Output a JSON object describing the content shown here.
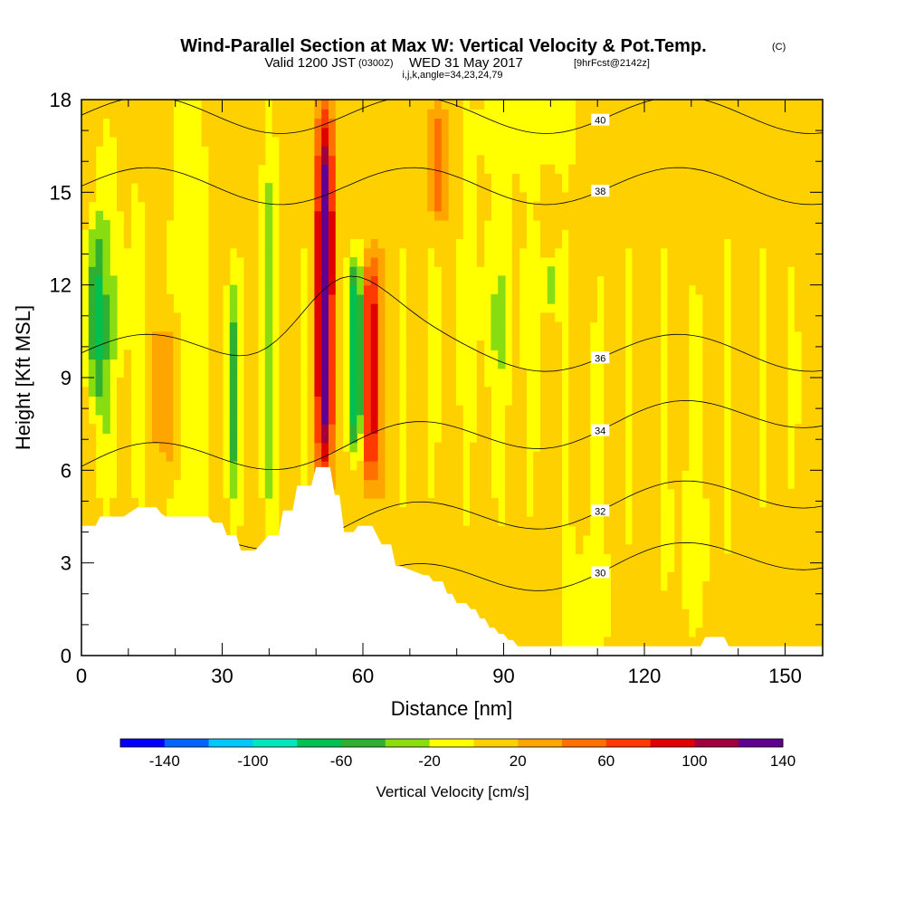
{
  "title": {
    "main": "Wind-Parallel Section at Max W: Vertical Velocity & Pot.Temp.",
    "main_unit": "(C)",
    "valid_prefix": "Valid 1200 JST",
    "valid_utc": "(0300Z)",
    "valid_date": "WED 31 May 2017",
    "forecast": "[9hrFcst@2142z]",
    "indices": "i,j,k,angle=34,23,24,79"
  },
  "colors": {
    "terrain": "#ffffff",
    "frame": "#000000",
    "contour": "#000000",
    "palette": [
      "#0000ff",
      "#0064ff",
      "#00c8ff",
      "#00e6c0",
      "#00c050",
      "#30b030",
      "#88dd10",
      "#ffff00",
      "#ffd000",
      "#ffa500",
      "#ff7000",
      "#ff3a00",
      "#e00000",
      "#a00040",
      "#600090"
    ]
  },
  "chart_data": {
    "type": "heatmap",
    "xlabel": "Distance [nm]",
    "ylabel": "Height [Kft MSL]",
    "xlim": [
      0,
      158
    ],
    "ylim": [
      0,
      18
    ],
    "xticks": [
      0,
      30,
      60,
      90,
      120,
      150
    ],
    "yticks": [
      0,
      3,
      6,
      9,
      12,
      15,
      18
    ],
    "colorbar": {
      "title": "Vertical Velocity [cm/s]",
      "levels": [
        -160,
        -140,
        -120,
        -100,
        -80,
        -60,
        -40,
        -20,
        0,
        20,
        40,
        60,
        80,
        100,
        120,
        140,
        160
      ],
      "tick_labels": [
        -140,
        -100,
        -60,
        -20,
        20,
        60,
        100,
        140
      ]
    },
    "vertical_velocity_features": [
      {
        "x": 52,
        "y_bottom": 6,
        "y_top": 17.5,
        "peak": 150,
        "sign": "updraft"
      },
      {
        "x": 58.5,
        "y_bottom": 6.5,
        "y_top": 13,
        "peak": -110,
        "sign": "downdraft"
      },
      {
        "x": 61.5,
        "y_bottom": 5.5,
        "y_top": 13,
        "peak": 110,
        "sign": "updraft"
      },
      {
        "x": 3,
        "y_bottom": 8,
        "y_top": 14,
        "peak": -55,
        "sign": "downdraft"
      },
      {
        "x": 32,
        "y_bottom": 5,
        "y_top": 12,
        "peak": -50,
        "sign": "downdraft"
      },
      {
        "x": 40,
        "y_bottom": 4,
        "y_top": 17,
        "peak": -30,
        "sign": "downdraft"
      },
      {
        "x": 76,
        "y_bottom": 14,
        "y_top": 18,
        "peak": 50,
        "sign": "updraft"
      },
      {
        "x": 19,
        "y_bottom": 6,
        "y_top": 11,
        "peak": 40,
        "sign": "updraft"
      },
      {
        "x": 100,
        "y_bottom": 11,
        "y_top": 13,
        "peak": -40,
        "sign": "downdraft"
      }
    ],
    "potential_temperature_contours": [
      {
        "value": 30,
        "label": "30"
      },
      {
        "value": 32,
        "label": "32"
      },
      {
        "value": 34,
        "label": "34"
      },
      {
        "value": 36,
        "label": "36"
      },
      {
        "value": 38,
        "label": "38"
      },
      {
        "value": 40,
        "label": "40"
      }
    ],
    "terrain_profile": {
      "x": [
        0,
        3,
        4,
        9,
        12,
        16,
        17,
        18,
        27,
        28,
        30,
        31,
        33,
        34,
        37,
        40,
        42,
        43,
        45,
        46,
        49,
        50,
        53,
        54,
        55,
        56,
        58,
        59,
        62,
        64,
        66,
        67,
        68,
        73,
        74,
        75,
        77,
        78,
        79,
        80,
        82,
        83,
        84,
        85,
        86,
        87,
        88,
        89,
        90,
        91,
        92,
        93,
        94,
        95,
        96,
        97,
        98,
        99,
        100,
        101,
        128,
        132,
        133,
        137,
        138,
        158
      ],
      "y": [
        4.2,
        4.2,
        4.5,
        4.5,
        4.8,
        4.8,
        4.6,
        4.5,
        4.5,
        4.3,
        4.3,
        3.9,
        3.9,
        3.4,
        3.4,
        3.9,
        3.9,
        4.7,
        4.7,
        5.5,
        5.5,
        6.1,
        6.1,
        5.2,
        5.2,
        4.0,
        4.0,
        4.2,
        4.2,
        3.6,
        3.6,
        2.9,
        2.9,
        2.6,
        2.6,
        2.4,
        2.4,
        2.0,
        2.0,
        1.7,
        1.7,
        1.5,
        1.5,
        1.2,
        1.2,
        0.9,
        0.9,
        0.7,
        0.7,
        0.5,
        0.5,
        0.3,
        0.3,
        0.3,
        0.3,
        0.3,
        0.3,
        0.3,
        0.3,
        0.3,
        0.3,
        0.3,
        0.6,
        0.6,
        0.3,
        0.3
      ]
    }
  }
}
